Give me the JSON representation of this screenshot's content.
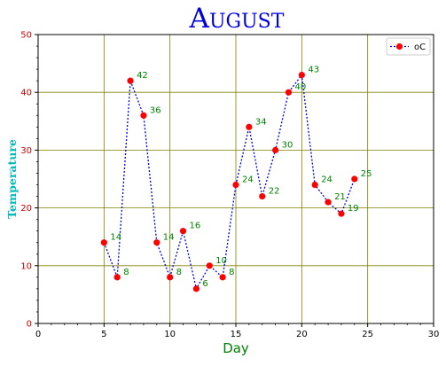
{
  "chart_data": {
    "type": "line",
    "title": "August",
    "xlabel": "Day",
    "ylabel": "Temperature",
    "xlim": [
      0,
      30
    ],
    "ylim": [
      0,
      50
    ],
    "xticks": [
      0,
      5,
      10,
      15,
      20,
      25,
      30
    ],
    "yticks": [
      0,
      10,
      20,
      30,
      40,
      50
    ],
    "grid": true,
    "legend_position": "top-right",
    "series": [
      {
        "name": "oC",
        "x": [
          5,
          6,
          7,
          8,
          9,
          10,
          11,
          12,
          13,
          14,
          15,
          16,
          17,
          18,
          19,
          20,
          21,
          22,
          23,
          24
        ],
        "y": [
          14,
          8,
          42,
          36,
          14,
          8,
          16,
          6,
          10,
          8,
          24,
          34,
          22,
          30,
          40,
          43,
          24,
          21,
          19,
          25
        ],
        "line_color": "#0000ee",
        "marker_color": "#ff0000",
        "label_color": "#008000"
      }
    ],
    "colors": {
      "title": "#0000dd",
      "xlabel": "#008000",
      "ylabel": "#00bbbb",
      "ytick_labels": "#cc0000",
      "grid": "#808000"
    }
  }
}
